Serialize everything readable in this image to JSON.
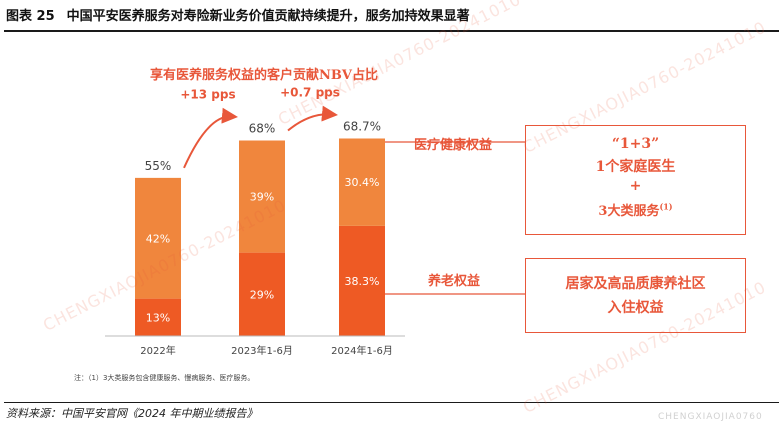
{
  "figure": {
    "number": "图表 25",
    "title": "中国平安医养服务对寿险新业务价值贡献持续提升，服务加持效果显著"
  },
  "chart_data": {
    "type": "bar",
    "title": "享有医养服务权益的客户贡献NBV占比",
    "categories": [
      "2022年",
      "2023年1-6月",
      "2024年1-6月"
    ],
    "series": [
      {
        "name": "养老权益",
        "values": [
          13,
          29,
          38.3
        ],
        "labels": [
          "13%",
          "29%",
          "38.3%"
        ],
        "color": "#ee5a24"
      },
      {
        "name": "医疗健康权益",
        "values": [
          42,
          39,
          30.4
        ],
        "labels": [
          "42%",
          "39%",
          "30.4%"
        ],
        "color": "#f0863d"
      }
    ],
    "totals": [
      55,
      68,
      68.7
    ],
    "total_labels": [
      "55%",
      "68%",
      "68.7%"
    ],
    "changes": [
      "+13 pps",
      "+0.7 pps"
    ],
    "ylim": [
      0,
      80
    ]
  },
  "legend_panels": {
    "health_label": "医疗健康权益",
    "health_lines": [
      "“1+3”",
      "1个家庭医生",
      "+",
      "3大类服务"
    ],
    "health_sup": "(1)",
    "elder_label": "养老权益",
    "elder_lines": [
      "居家及高品质康养社区",
      "入住权益"
    ]
  },
  "note": "注：（1）3大类服务包含健康服务、慢病服务、医疗服务。",
  "source": "资料来源：中国平安官网《2024 年中期业绩报告》",
  "watermarks": [
    "CHENGXIAOJIA0760-20241010",
    "CHENGXIAOJIA0760"
  ],
  "colors": {
    "accent": "#e8573a",
    "bar_bottom": "#ee5a24",
    "bar_top": "#f0863d"
  }
}
